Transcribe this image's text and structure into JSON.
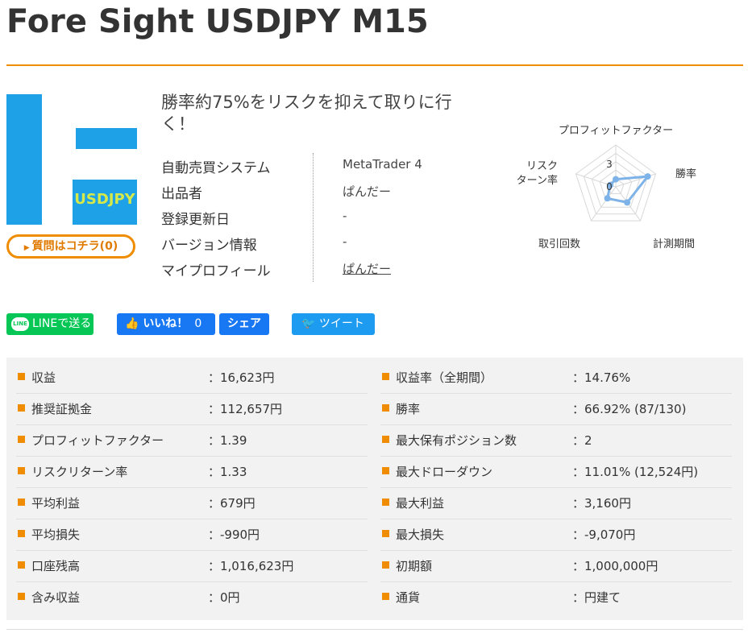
{
  "title": "Fore Sight USDJPY M15",
  "thumbnail_text": "USDJPY",
  "question_button": "質問はコチラ(0)",
  "catchphrase": "勝率約75%をリスクを抑えて取りに行く！",
  "info": [
    {
      "key": "自動売買システム",
      "value": "MetaTrader 4",
      "link": false
    },
    {
      "key": "出品者",
      "value": "ぱんだー",
      "link": false
    },
    {
      "key": "登録更新日",
      "value": "-",
      "link": false
    },
    {
      "key": "バージョン情報",
      "value": "-",
      "link": false
    },
    {
      "key": "マイプロフィール",
      "value": "ぱんだー",
      "link": true
    }
  ],
  "radar": {
    "axes": [
      "プロフィットファクター",
      "勝率",
      "計測期間",
      "取引回数",
      "リスクターン率"
    ],
    "label_pf": "プロフィットファクター",
    "label_win": "勝率",
    "label_period": "計測期間",
    "label_trades": "取引回数",
    "label_risk_1": "リスク",
    "label_risk_2": "ターン率",
    "scale_max_label": "3",
    "scale_min_label": "0",
    "max": 5,
    "values": [
      0.9,
      4.0,
      2.3,
      1.7,
      0.7
    ],
    "color": "#7db3e8"
  },
  "social": {
    "line": "LINEで送る",
    "line_logo": "LINE",
    "fb_like": "いいね！",
    "fb_like_count": "0",
    "fb_share": "シェア",
    "tweet": "ツイート"
  },
  "stats_left": [
    {
      "key": "収益",
      "value": "：16,623円"
    },
    {
      "key": "推奨証拠金",
      "value": "：112,657円"
    },
    {
      "key": "プロフィットファクター",
      "value": "：1.39"
    },
    {
      "key": "リスクリターン率",
      "value": "：1.33"
    },
    {
      "key": "平均利益",
      "value": "：679円"
    },
    {
      "key": "平均損失",
      "value": "：-990円"
    },
    {
      "key": "口座残高",
      "value": "：1,016,623円"
    },
    {
      "key": "含み収益",
      "value": "：0円"
    }
  ],
  "stats_right": [
    {
      "key": "収益率（全期間）",
      "value": "：14.76%"
    },
    {
      "key": "勝率",
      "value": "：66.92% (87/130)"
    },
    {
      "key": "最大保有ポジション数",
      "value": "：2"
    },
    {
      "key": "最大ドローダウン",
      "value": "：11.01% (12,524円)"
    },
    {
      "key": "最大利益",
      "value": "：3,160円"
    },
    {
      "key": "最大損失",
      "value": "：-9,070円"
    },
    {
      "key": "初期額",
      "value": "：1,000,000円"
    },
    {
      "key": "通貨",
      "value": "：円建て"
    }
  ],
  "colors": {
    "accent": "#f08c00",
    "line": "#06c755",
    "facebook": "#1877f2",
    "twitter": "#1d9bf0"
  }
}
